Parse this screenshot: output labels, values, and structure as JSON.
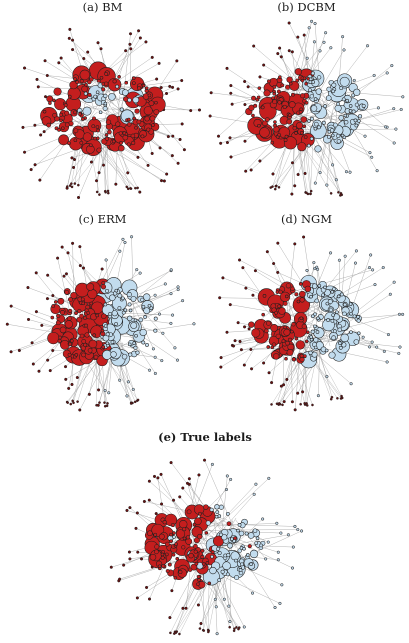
{
  "figure": {
    "panels": [
      {
        "id": "bm",
        "title": "(a) BM",
        "style": "bm"
      },
      {
        "id": "dcbm",
        "title": "(b) DCBM",
        "style": "split"
      },
      {
        "id": "erm",
        "title": "(c) ERM",
        "style": "split"
      },
      {
        "id": "ngm",
        "title": "(d) NGM",
        "style": "split"
      },
      {
        "id": "true",
        "title": "(e) True labels",
        "style": "true"
      }
    ],
    "colors": {
      "community_red": "#c41e1e",
      "community_blue": "#c2dcee",
      "node_outline": "#1f1f1f",
      "edge": "#9a9a9a"
    }
  }
}
